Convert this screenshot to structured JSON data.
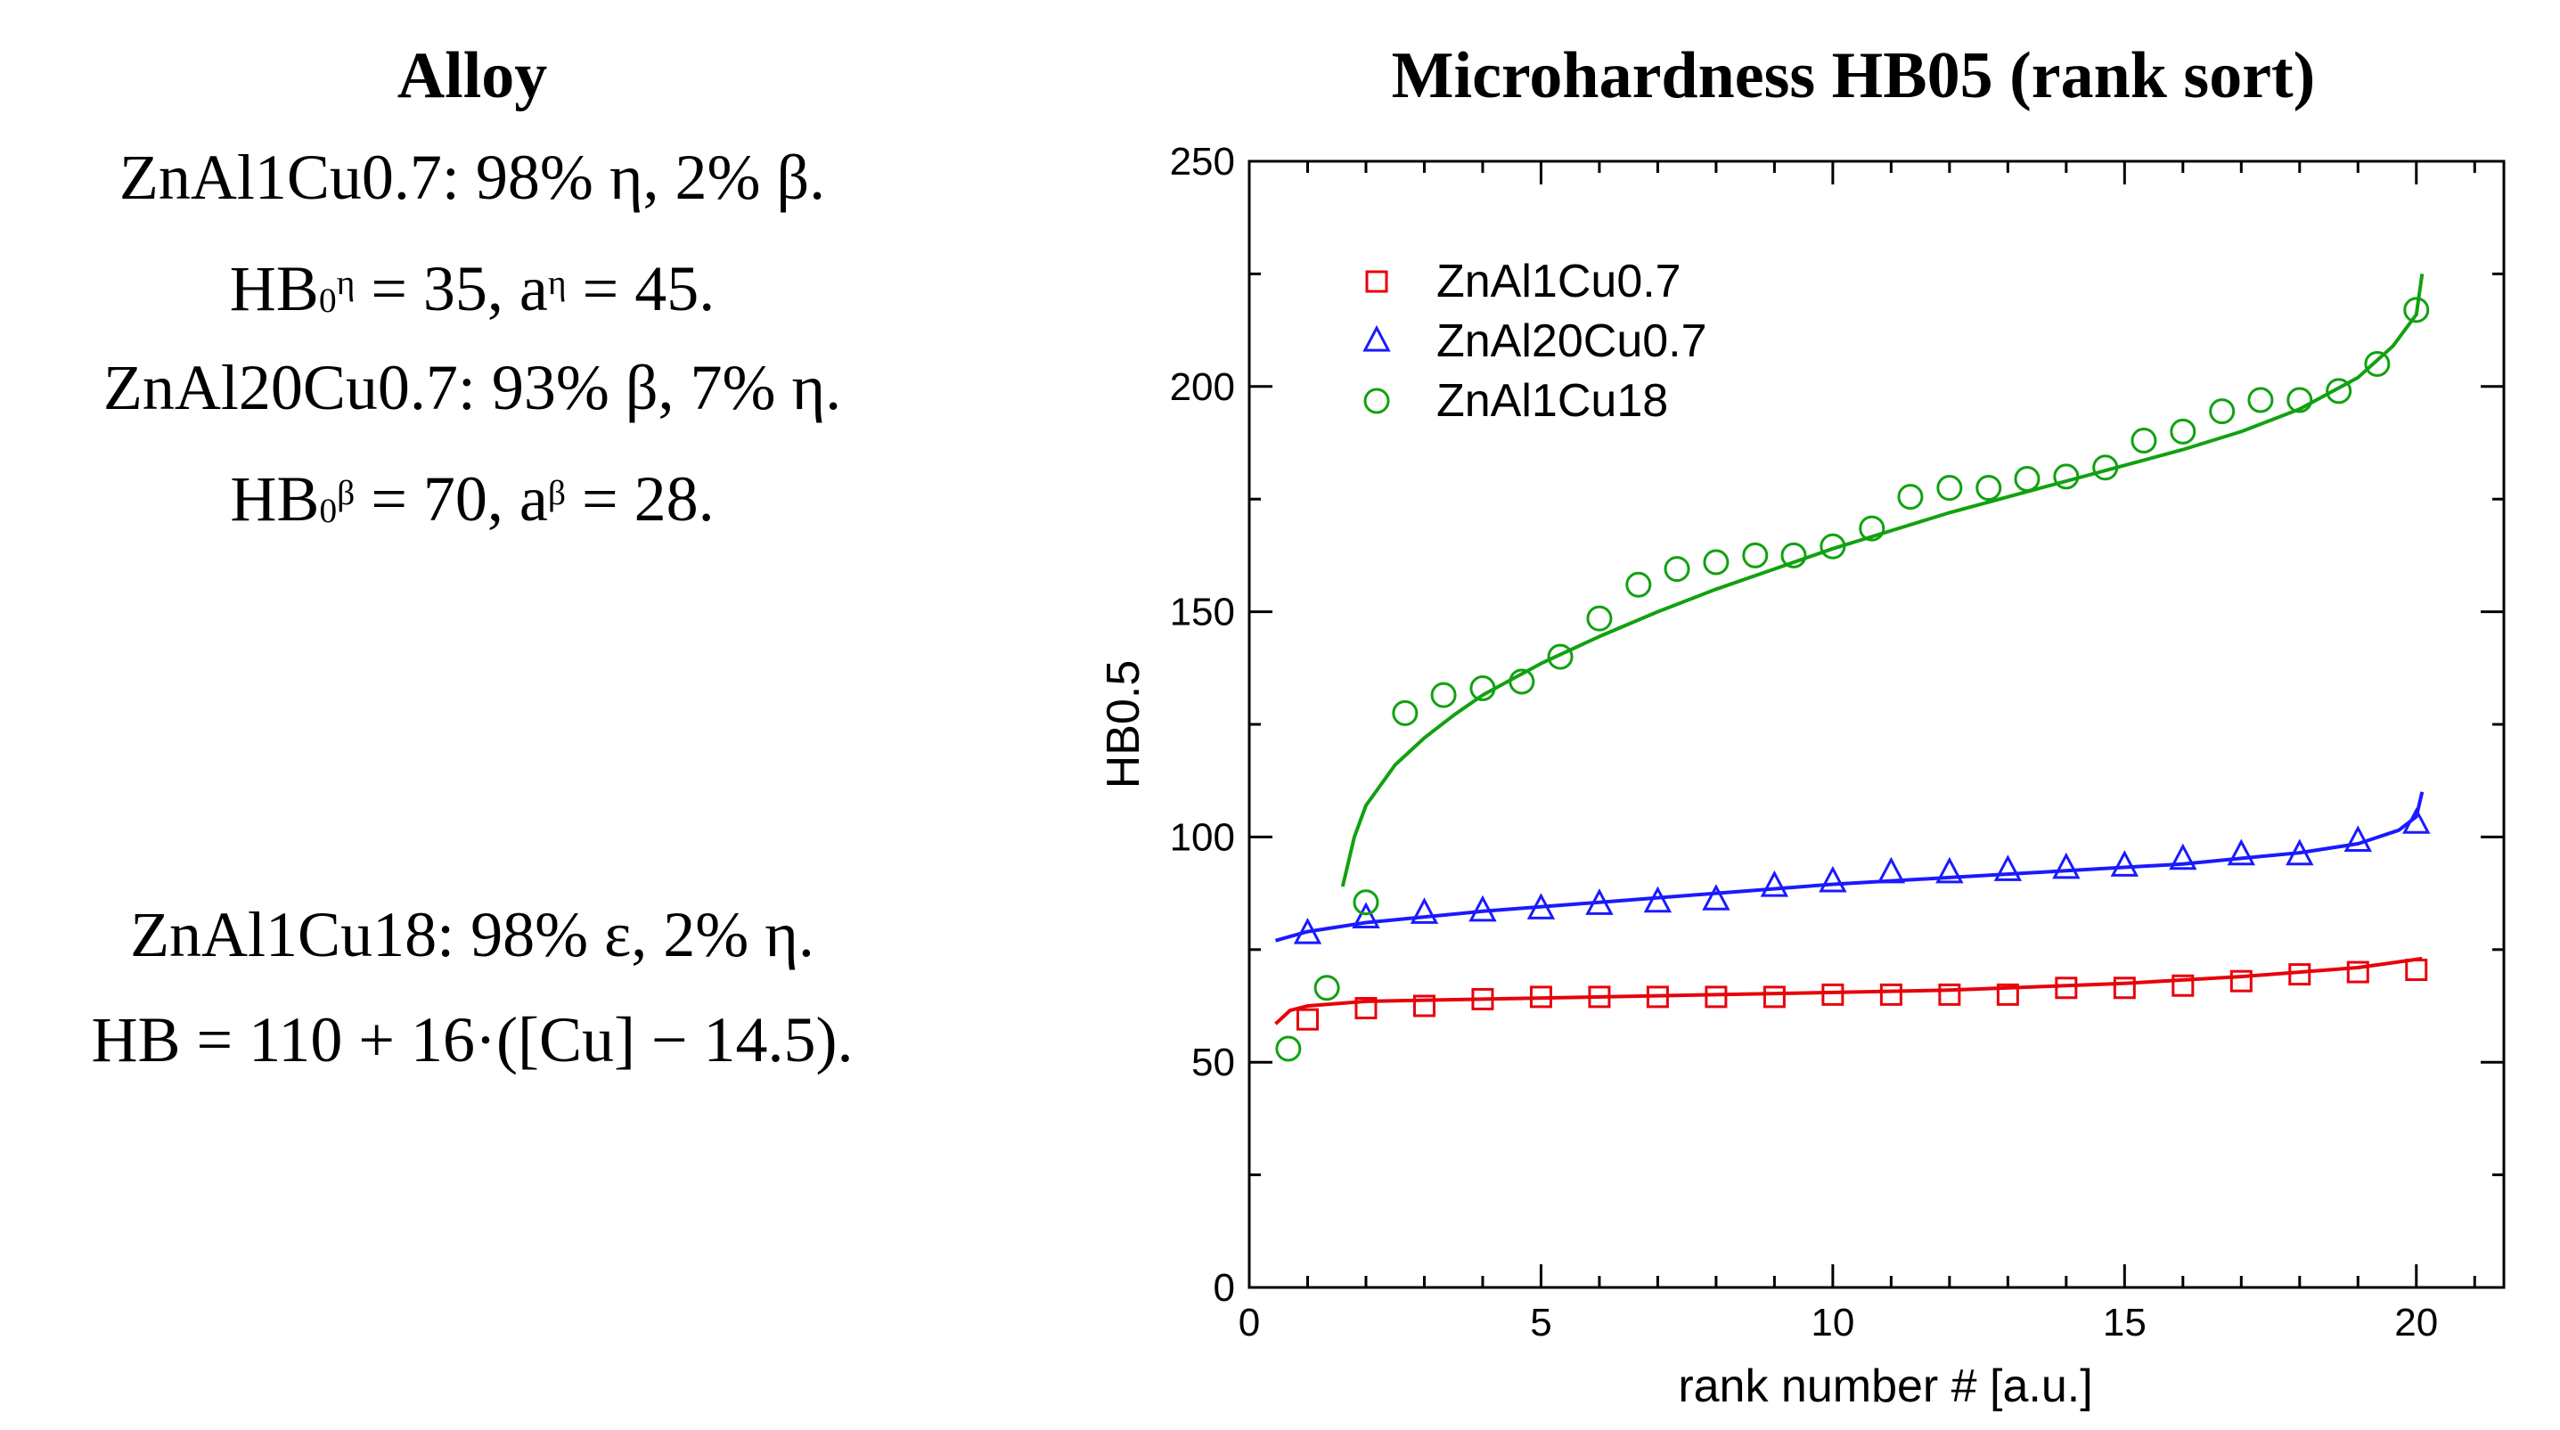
{
  "left_panel": {
    "title": "Alloy",
    "alloys": [
      {
        "composition": "ZnAl1Cu0.7: 98% η, 2% β.",
        "params": {
          "hb_label": "HB",
          "hb_sub": "0",
          "hb_sup": "η",
          "hb_value": " = 35, ",
          "a_label": "a",
          "a_sup": "η",
          "a_value": " = 45."
        }
      },
      {
        "composition": "ZnAl20Cu0.7: 93% β, 7% η.",
        "params": {
          "hb_label": "HB",
          "hb_sub": "0",
          "hb_sup": "β",
          "hb_value": " = 70, ",
          "a_label": "a",
          "a_sup": "β",
          "a_value": " = 28."
        }
      },
      {
        "composition": "ZnAl1Cu18: 98% ε, 2% η.",
        "formula": "HB = 110 + 16·([Cu] − 14.5)."
      }
    ]
  },
  "chart_data": {
    "type": "scatter",
    "title": "Microhardness HB05 (rank sort)",
    "xlabel": "rank number # [a.u.]",
    "ylabel": "HB0.5",
    "xlim": [
      0,
      21.5
    ],
    "ylim": [
      0,
      250
    ],
    "xticks": [
      0,
      5,
      10,
      15,
      20
    ],
    "yticks": [
      0,
      50,
      100,
      150,
      200,
      250
    ],
    "legend_position": "top-left",
    "grid": false,
    "series": [
      {
        "name": "ZnAl1Cu0.7",
        "marker": "square",
        "color": "#e8000b",
        "points": [
          [
            1,
            59.5
          ],
          [
            2,
            62
          ],
          [
            3,
            62.5
          ],
          [
            4,
            64
          ],
          [
            5,
            64.5
          ],
          [
            6,
            64.5
          ],
          [
            7,
            64.5
          ],
          [
            8,
            64.5
          ],
          [
            9,
            64.5
          ],
          [
            10,
            65
          ],
          [
            11,
            65
          ],
          [
            12,
            65
          ],
          [
            13,
            65
          ],
          [
            14,
            66.5
          ],
          [
            15,
            66.5
          ],
          [
            16,
            67
          ],
          [
            17,
            68
          ],
          [
            18,
            69.5
          ],
          [
            19,
            70
          ],
          [
            20,
            70.5
          ]
        ],
        "fit": [
          [
            0.45,
            58.5
          ],
          [
            0.7,
            61.5
          ],
          [
            1,
            62.5
          ],
          [
            2,
            63.5
          ],
          [
            4,
            64
          ],
          [
            8,
            65
          ],
          [
            12,
            66
          ],
          [
            15,
            67.5
          ],
          [
            17,
            69
          ],
          [
            19,
            71
          ],
          [
            20.1,
            73
          ]
        ]
      },
      {
        "name": "ZnAl20Cu0.7",
        "marker": "triangle",
        "color": "#1a1aff",
        "points": [
          [
            1,
            78.5
          ],
          [
            2,
            82
          ],
          [
            3,
            83
          ],
          [
            4,
            83.5
          ],
          [
            5,
            84
          ],
          [
            6,
            85
          ],
          [
            7,
            85.5
          ],
          [
            8,
            86
          ],
          [
            9,
            89
          ],
          [
            10,
            90
          ],
          [
            11,
            92
          ],
          [
            12,
            92
          ],
          [
            13,
            92.5
          ],
          [
            14,
            93
          ],
          [
            15,
            93.5
          ],
          [
            16,
            95
          ],
          [
            17,
            96
          ],
          [
            18,
            96
          ],
          [
            19,
            99
          ],
          [
            20,
            103
          ]
        ],
        "fit": [
          [
            0.45,
            77
          ],
          [
            1,
            79
          ],
          [
            2,
            81
          ],
          [
            4,
            83.5
          ],
          [
            6,
            85.5
          ],
          [
            8,
            87.5
          ],
          [
            10,
            89.5
          ],
          [
            12,
            91
          ],
          [
            14,
            92.5
          ],
          [
            16,
            94
          ],
          [
            18,
            96.5
          ],
          [
            19,
            98.5
          ],
          [
            19.7,
            101.5
          ],
          [
            20,
            104.5
          ],
          [
            20.1,
            110
          ]
        ]
      },
      {
        "name": "ZnAl1Cu18",
        "marker": "circle",
        "color": "#11a111",
        "points": [
          [
            0.67,
            53
          ],
          [
            1.33,
            66.5
          ],
          [
            2,
            85.5
          ],
          [
            2.67,
            127.5
          ],
          [
            3.33,
            131.5
          ],
          [
            4,
            133
          ],
          [
            4.67,
            134.5
          ],
          [
            5.33,
            140
          ],
          [
            6,
            148.5
          ],
          [
            6.67,
            156
          ],
          [
            7.33,
            159.5
          ],
          [
            8,
            161
          ],
          [
            8.67,
            162.5
          ],
          [
            9.33,
            162.5
          ],
          [
            10,
            164.5
          ],
          [
            10.67,
            168.5
          ],
          [
            11.33,
            175.5
          ],
          [
            12,
            177.5
          ],
          [
            12.67,
            177.5
          ],
          [
            13.33,
            179.5
          ],
          [
            14,
            180
          ],
          [
            14.67,
            182
          ],
          [
            15.33,
            188
          ],
          [
            16,
            190
          ],
          [
            16.67,
            194.5
          ],
          [
            17.33,
            197
          ],
          [
            18,
            197
          ],
          [
            18.67,
            199
          ],
          [
            19.33,
            205
          ],
          [
            20,
            217
          ]
        ],
        "fit": [
          [
            1.6,
            89
          ],
          [
            1.8,
            100
          ],
          [
            2,
            107
          ],
          [
            2.5,
            116
          ],
          [
            3,
            122
          ],
          [
            3.5,
            127
          ],
          [
            4,
            131.5
          ],
          [
            5,
            138.5
          ],
          [
            6,
            144.5
          ],
          [
            7,
            150
          ],
          [
            8,
            155
          ],
          [
            9,
            159.5
          ],
          [
            10,
            164
          ],
          [
            11,
            168
          ],
          [
            12,
            172
          ],
          [
            13,
            175.5
          ],
          [
            14,
            179
          ],
          [
            15,
            182.5
          ],
          [
            16,
            186
          ],
          [
            17,
            190
          ],
          [
            18,
            195
          ],
          [
            19,
            202
          ],
          [
            19.6,
            209
          ],
          [
            20,
            216
          ],
          [
            20.1,
            225
          ]
        ]
      }
    ]
  }
}
